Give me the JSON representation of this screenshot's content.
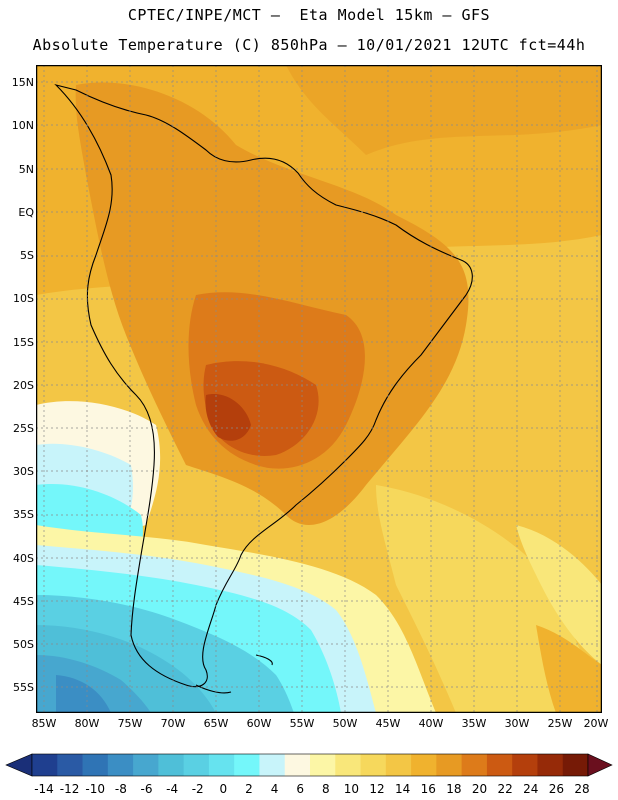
{
  "header": {
    "title_line1": "CPTEC/INPE/MCT –  Eta Model 15km – GFS",
    "title_line2": "Absolute Temperature (C) 850hPa – 10/01/2021 12UTC fct=44h"
  },
  "map": {
    "lat_labels": [
      "15N",
      "10N",
      "5N",
      "EQ",
      "5S",
      "10S",
      "15S",
      "20S",
      "25S",
      "30S",
      "35S",
      "40S",
      "45S",
      "50S",
      "55S"
    ],
    "lon_labels": [
      "85W",
      "80W",
      "75W",
      "70W",
      "65W",
      "60W",
      "55W",
      "50W",
      "45W",
      "40W",
      "35W",
      "30W",
      "25W",
      "20W"
    ]
  },
  "colorbar": {
    "labels": [
      "-14",
      "-12",
      "-10",
      "-8",
      "-6",
      "-4",
      "-2",
      "0",
      "2",
      "4",
      "6",
      "8",
      "10",
      "12",
      "14",
      "16",
      "18",
      "20",
      "22",
      "24",
      "26",
      "28"
    ],
    "colors": [
      "#1f3f8f",
      "#2a5aa5",
      "#2f74b5",
      "#3b8ec4",
      "#47a7cf",
      "#4fbfd8",
      "#5ad0e3",
      "#66e3ef",
      "#74f7fa",
      "#c8f4fa",
      "#fdf8e1",
      "#fcf6a6",
      "#f9e77a",
      "#f6d85c",
      "#f3c645",
      "#f0b22e",
      "#e79a23",
      "#dd7b1a",
      "#cc5a12",
      "#b43f0c",
      "#962a08",
      "#761a06"
    ],
    "under_color": "#1a2f78",
    "over_color": "#6a0f1e"
  }
}
